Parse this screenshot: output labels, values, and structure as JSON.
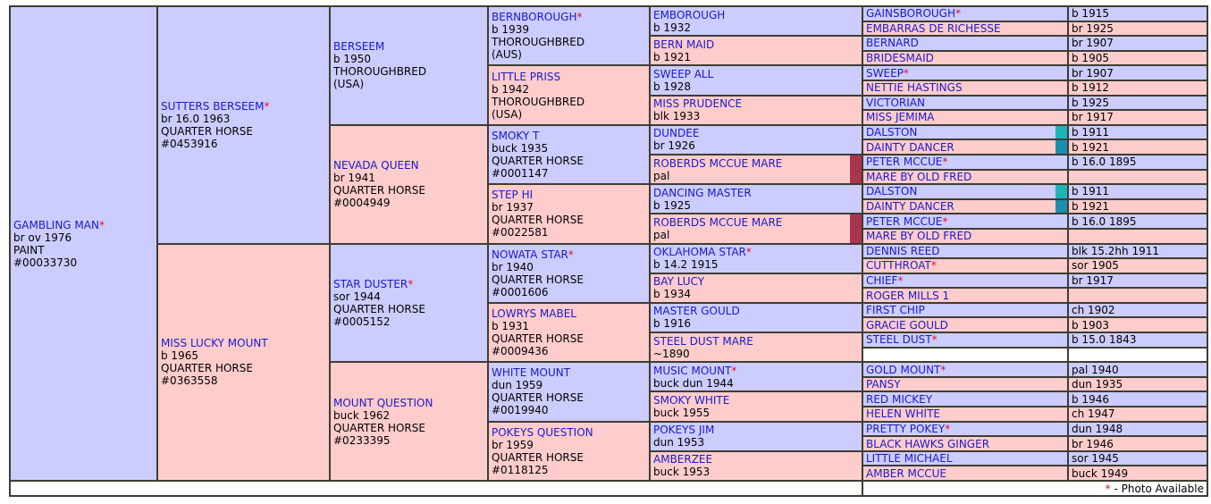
{
  "generations": [
    [
      {
        "name": "GAMBLING MAN",
        "mark": "*",
        "lines": [
          "br ov 1976",
          "PAINT",
          "#00033730"
        ]
      }
    ],
    [
      {
        "name": "SUTTERS BERSEEM",
        "mark": "*",
        "lines": [
          "br 16.0 1963",
          "QUARTER HORSE",
          "#0453916"
        ]
      },
      {
        "name": "MISS LUCKY MOUNT",
        "lines": [
          "b 1965",
          "QUARTER HORSE",
          "#0363558"
        ]
      }
    ],
    [
      {
        "name": "BERSEEM",
        "lines": [
          "b 1950",
          "THOROUGHBRED",
          "(USA)"
        ]
      },
      {
        "name": "NEVADA QUEEN",
        "lines": [
          "br 1941",
          "QUARTER HORSE",
          "#0004949"
        ]
      },
      {
        "name": "STAR DUSTER",
        "mark": "*",
        "lines": [
          "sor 1944",
          "QUARTER HORSE",
          "#0005152"
        ]
      },
      {
        "name": "MOUNT QUESTION",
        "lines": [
          "buck 1962",
          "QUARTER HORSE",
          "#0233395"
        ]
      }
    ],
    [
      {
        "name": "BERNBOROUGH",
        "mark": "*",
        "lines": [
          "b 1939",
          "THOROUGHBRED",
          "(AUS)"
        ]
      },
      {
        "name": "LITTLE PRISS",
        "lines": [
          "b 1942",
          "THOROUGHBRED",
          "(USA)"
        ]
      },
      {
        "name": "SMOKY T",
        "lines": [
          "buck 1935",
          "QUARTER HORSE",
          "#0001147"
        ]
      },
      {
        "name": "STEP HI",
        "lines": [
          "br 1937",
          "QUARTER HORSE",
          "#0022581"
        ]
      },
      {
        "name": "NOWATA STAR",
        "mark": "*",
        "lines": [
          "br 1940",
          "QUARTER HORSE",
          "#0001606"
        ]
      },
      {
        "name": "LOWRYS MABEL",
        "lines": [
          "b 1931",
          "QUARTER HORSE",
          "#0009436"
        ]
      },
      {
        "name": "WHITE MOUNT",
        "lines": [
          "dun 1959",
          "QUARTER HORSE",
          "#0019940"
        ]
      },
      {
        "name": "POKEYS QUESTION",
        "lines": [
          "br 1959",
          "QUARTER HORSE",
          "#0118125"
        ]
      }
    ],
    [
      {
        "name": "EMBOROUGH",
        "lines": [
          "b 1932"
        ]
      },
      {
        "name": "BERN MAID",
        "lines": [
          "b 1921"
        ]
      },
      {
        "name": "SWEEP ALL",
        "lines": [
          "b 1928"
        ]
      },
      {
        "name": "MISS PRUDENCE",
        "lines": [
          "blk 1933"
        ]
      },
      {
        "name": "DUNDEE",
        "lines": [
          "br 1926"
        ]
      },
      {
        "name": "ROBERDS MCCUE MARE",
        "lines": [
          "pal"
        ],
        "highlight": "#a8364f"
      },
      {
        "name": "DANCING MASTER",
        "lines": [
          "b 1925"
        ]
      },
      {
        "name": "ROBERDS MCCUE MARE",
        "lines": [
          "pal"
        ],
        "highlight": "#a8364f"
      },
      {
        "name": "OKLAHOMA STAR",
        "mark": "*",
        "lines": [
          "b 14.2 1915"
        ]
      },
      {
        "name": "BAY LUCY",
        "lines": [
          "b 1934"
        ]
      },
      {
        "name": "MASTER GOULD",
        "lines": [
          "b 1916"
        ]
      },
      {
        "name": "STEEL DUST MARE",
        "lines": [
          "~1890"
        ]
      },
      {
        "name": "MUSIC MOUNT",
        "mark": "*",
        "lines": [
          "buck dun 1944"
        ]
      },
      {
        "name": "SMOKY WHITE",
        "lines": [
          "buck 1955"
        ]
      },
      {
        "name": "POKEYS JIM",
        "lines": [
          "dun 1953"
        ]
      },
      {
        "name": "AMBERZEE",
        "lines": [
          "buck 1953"
        ]
      }
    ],
    [
      {
        "name": "GAINSBOROUGH",
        "mark": "*",
        "info": "b 1915"
      },
      {
        "name": "EMBARRAS DE RICHESSE",
        "info": "br 1925"
      },
      {
        "name": "BERNARD",
        "info": "br 1907"
      },
      {
        "name": "BRIDESMAID",
        "info": "b 1905"
      },
      {
        "name": "SWEEP",
        "mark": "*",
        "info": "br 1907"
      },
      {
        "name": "NETTIE HASTINGS",
        "info": "b 1912"
      },
      {
        "name": "VICTORIAN",
        "info": "b 1925"
      },
      {
        "name": "MISS JEMIMA",
        "info": "br 1917"
      },
      {
        "name": "DALSTON",
        "info": "b 1911",
        "highlight": "#1fb3b8"
      },
      {
        "name": "DAINTY DANCER",
        "info": "b 1921",
        "highlight": "#1b8fae"
      },
      {
        "name": "PETER MCCUE",
        "mark": "*",
        "info": "b 16.0 1895"
      },
      {
        "name": "MARE BY OLD FRED"
      },
      {
        "name": "DALSTON",
        "info": "b 1911",
        "highlight": "#1fb3b8"
      },
      {
        "name": "DAINTY DANCER",
        "info": "b 1921",
        "highlight": "#1b8fae"
      },
      {
        "name": "PETER MCCUE",
        "mark": "*",
        "info": "b 16.0 1895"
      },
      {
        "name": "MARE BY OLD FRED"
      },
      {
        "name": "DENNIS REED",
        "info": "blk 15.2hh 1911"
      },
      {
        "name": "CUTTHROAT",
        "mark": "*",
        "info": "sor 1905"
      },
      {
        "name": "CHIEF",
        "mark": "*",
        "info": "br 1917"
      },
      {
        "name": "ROGER MILLS 1"
      },
      {
        "name": "FIRST CHIP",
        "info": "ch 1902"
      },
      {
        "name": "GRACIE GOULD",
        "info": "b 1903"
      },
      {
        "name": "STEEL DUST",
        "mark": "*",
        "info": "b 15.0 1843"
      },
      null,
      {
        "name": "GOLD MOUNT",
        "mark": "*",
        "info": "pal 1940"
      },
      {
        "name": "PANSY",
        "info": "dun 1935"
      },
      {
        "name": "RED MICKEY",
        "info": "b 1946"
      },
      {
        "name": "HELEN WHITE",
        "info": "ch 1947"
      },
      {
        "name": "PRETTY POKEY",
        "mark": "*",
        "info": "dun 1948"
      },
      {
        "name": "BLACK HAWKS GINGER",
        "info": "br 1946"
      },
      {
        "name": "LITTLE MICHAEL",
        "info": "sor 1945"
      },
      {
        "name": "AMBER MCCUE",
        "info": "buck 1949"
      }
    ]
  ],
  "footer": {
    "symbol": "*",
    "text": "- Photo Available"
  }
}
